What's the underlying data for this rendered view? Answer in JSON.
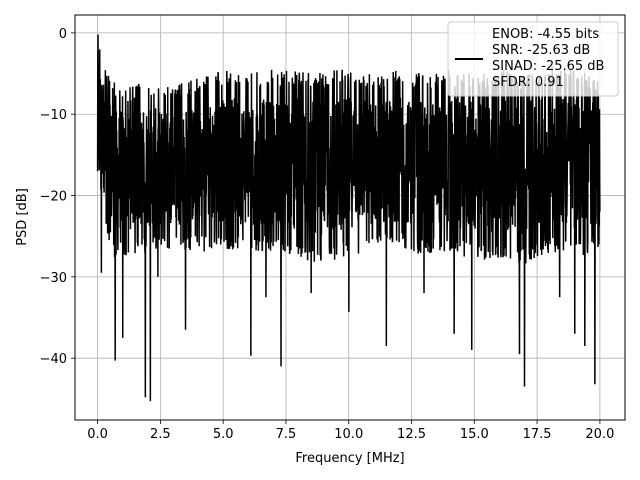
{
  "chart_data": {
    "type": "line",
    "title": "",
    "xlabel": "Frequency [MHz]",
    "ylabel": "PSD [dB]",
    "xlim": [
      -0.9,
      21.0
    ],
    "ylim": [
      -47.6,
      2.2
    ],
    "x_ticks": [
      0.0,
      2.5,
      5.0,
      7.5,
      10.0,
      12.5,
      15.0,
      17.5,
      20.0
    ],
    "x_tick_labels": [
      "0.0",
      "2.5",
      "5.0",
      "7.5",
      "10.0",
      "12.5",
      "15.0",
      "17.5",
      "20.0"
    ],
    "y_ticks": [
      0,
      -10,
      -20,
      -30,
      -40
    ],
    "y_tick_labels": [
      "0",
      "−10",
      "−20",
      "−30",
      "−40"
    ],
    "grid": true,
    "legend": {
      "placement": "top-right",
      "entries": [
        "ENOB: -4.55 bits\nSNR: -25.63 dB\nSINAD: -25.65 dB\nSFDR: 0.91"
      ]
    },
    "series": [
      {
        "color": "#000000",
        "x_start": 0.0,
        "x_end": 20.0,
        "band_upper": [
          [
            0.0,
            -0.2
          ],
          [
            0.5,
            -5.5
          ],
          [
            1.0,
            -6.5
          ],
          [
            2.0,
            -6.0
          ],
          [
            3.0,
            -6.5
          ],
          [
            4.0,
            -5.5
          ],
          [
            5.0,
            -4.5
          ],
          [
            6.0,
            -5.0
          ],
          [
            7.0,
            -4.5
          ],
          [
            8.0,
            -4.5
          ],
          [
            9.0,
            -5.0
          ],
          [
            10.0,
            -4.0
          ],
          [
            11.0,
            -5.0
          ],
          [
            12.0,
            -4.5
          ],
          [
            13.0,
            -5.0
          ],
          [
            14.0,
            -4.5
          ],
          [
            15.0,
            -5.0
          ],
          [
            16.0,
            -4.5
          ],
          [
            17.0,
            -5.0
          ],
          [
            18.0,
            -4.0
          ],
          [
            19.0,
            -4.5
          ],
          [
            20.0,
            -5.5
          ]
        ],
        "band_lower": [
          [
            0.0,
            -17.0
          ],
          [
            0.5,
            -28.0
          ],
          [
            1.0,
            -27.5
          ],
          [
            2.0,
            -27.0
          ],
          [
            3.0,
            -26.5
          ],
          [
            4.0,
            -27.0
          ],
          [
            5.0,
            -26.5
          ],
          [
            6.0,
            -27.0
          ],
          [
            7.0,
            -27.0
          ],
          [
            8.0,
            -28.0
          ],
          [
            9.0,
            -28.5
          ],
          [
            10.0,
            -27.5
          ],
          [
            11.0,
            -27.0
          ],
          [
            12.0,
            -26.5
          ],
          [
            13.0,
            -27.5
          ],
          [
            14.0,
            -27.0
          ],
          [
            15.0,
            -28.0
          ],
          [
            16.0,
            -28.0
          ],
          [
            17.0,
            -28.5
          ],
          [
            18.0,
            -27.0
          ],
          [
            19.0,
            -27.5
          ],
          [
            20.0,
            -27.0
          ]
        ],
        "dips": [
          [
            0.15,
            -29.5
          ],
          [
            0.7,
            -40.3
          ],
          [
            1.0,
            -37.5
          ],
          [
            1.9,
            -44.8
          ],
          [
            2.1,
            -45.3
          ],
          [
            2.4,
            -30.0
          ],
          [
            3.5,
            -36.5
          ],
          [
            6.1,
            -39.7
          ],
          [
            6.7,
            -32.5
          ],
          [
            7.3,
            -41.0
          ],
          [
            8.5,
            -32.0
          ],
          [
            10.0,
            -34.3
          ],
          [
            11.5,
            -38.5
          ],
          [
            13.0,
            -32.0
          ],
          [
            14.2,
            -37.0
          ],
          [
            14.9,
            -39.0
          ],
          [
            16.8,
            -39.5
          ],
          [
            17.0,
            -43.5
          ],
          [
            18.4,
            -32.5
          ],
          [
            19.0,
            -37.0
          ],
          [
            19.4,
            -38.5
          ],
          [
            19.8,
            -43.2
          ]
        ]
      }
    ]
  }
}
